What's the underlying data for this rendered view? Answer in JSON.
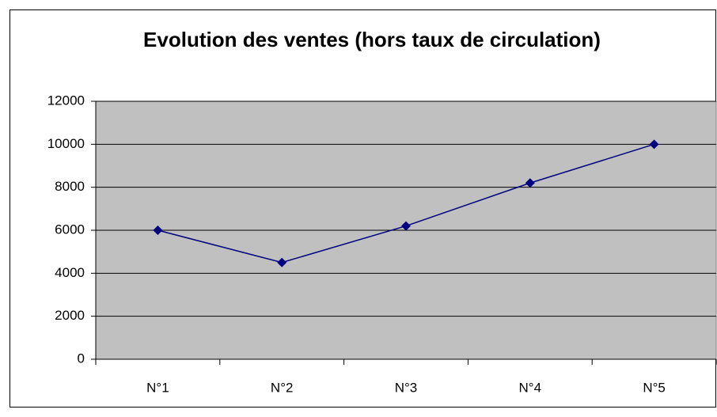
{
  "chart_data": {
    "type": "line",
    "title": "Evolution des ventes (hors taux de circulation)",
    "categories": [
      "N°1",
      "N°2",
      "N°3",
      "N°4",
      "N°5"
    ],
    "values": [
      6000,
      4500,
      6200,
      8200,
      10000
    ],
    "color": "#000080",
    "ylim": [
      0,
      12000
    ],
    "yticks": [
      0,
      2000,
      4000,
      6000,
      8000,
      10000,
      12000
    ],
    "grid": true
  }
}
